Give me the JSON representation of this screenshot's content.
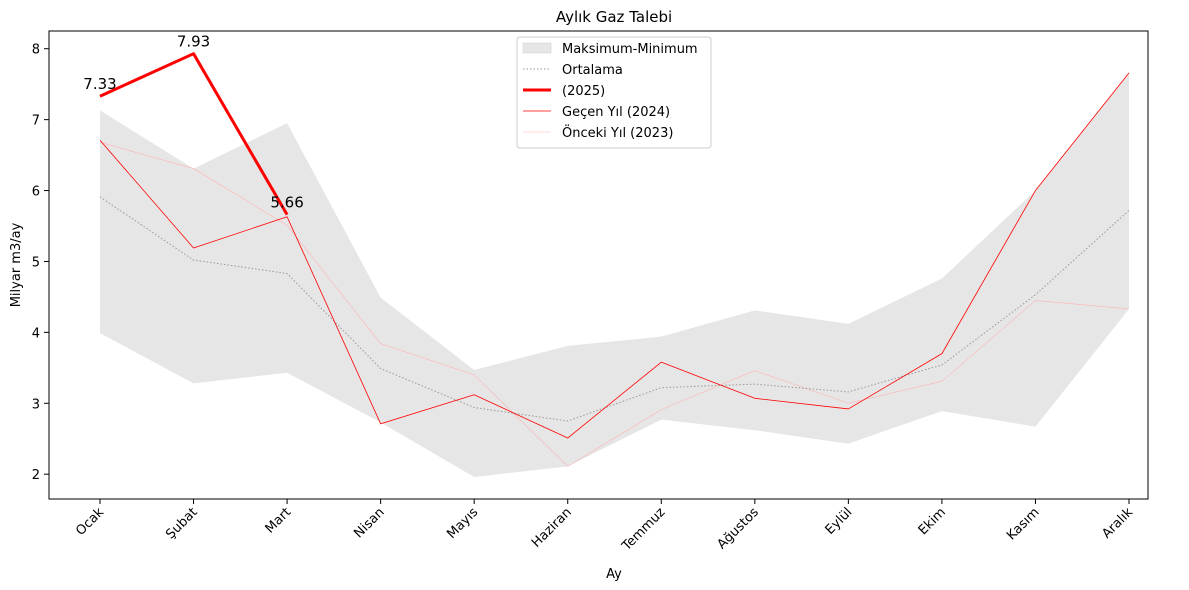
{
  "chart_data": {
    "type": "line",
    "title": "Aylık Gaz Talebi",
    "xlabel": "Ay",
    "ylabel": "Milyar m3/ay",
    "ylim": [
      1.65,
      8.25
    ],
    "yticks": [
      2,
      3,
      4,
      5,
      6,
      7,
      8
    ],
    "categories": [
      "Ocak",
      "Şubat",
      "Mart",
      "Nisan",
      "Mayıs",
      "Haziran",
      "Temmuz",
      "Ağustos",
      "Eylül",
      "Ekim",
      "Kasım",
      "Aralık"
    ],
    "band": {
      "name": "Maksimum-Minimum",
      "color": "#e6e6e6",
      "max": [
        7.13,
        6.31,
        6.95,
        4.49,
        3.47,
        3.81,
        3.94,
        4.31,
        4.12,
        4.76,
        6.0,
        7.66
      ],
      "min": [
        3.99,
        3.28,
        3.43,
        2.73,
        1.96,
        2.11,
        2.77,
        2.62,
        2.43,
        2.89,
        2.67,
        4.33
      ]
    },
    "series": [
      {
        "name": "Ortalama",
        "color": "#999999",
        "style": "dotted",
        "values": [
          5.91,
          5.02,
          4.83,
          3.49,
          2.94,
          2.75,
          3.22,
          3.27,
          3.16,
          3.54,
          4.53,
          5.72
        ]
      },
      {
        "name": " (2025)",
        "color": "#ff0000",
        "style": "thick",
        "values": [
          7.33,
          7.93,
          5.66,
          null,
          null,
          null,
          null,
          null,
          null,
          null,
          null,
          null
        ]
      },
      {
        "name": "Geçen Yıl (2024)",
        "color": "#ff0000",
        "style": "thin",
        "values": [
          6.71,
          5.19,
          5.63,
          2.71,
          3.12,
          2.51,
          3.58,
          3.07,
          2.92,
          3.7,
          6.0,
          7.66
        ]
      },
      {
        "name": "Önceki Yıl (2023)",
        "color": "#ffb3b3",
        "style": "faint",
        "values": [
          6.68,
          6.31,
          5.51,
          3.84,
          3.4,
          2.11,
          2.91,
          3.46,
          3.0,
          3.31,
          4.45,
          4.33
        ]
      }
    ],
    "data_labels": [
      "7.33",
      "7.93",
      "5.66"
    ],
    "legend_position": "top-center",
    "grid": false
  }
}
